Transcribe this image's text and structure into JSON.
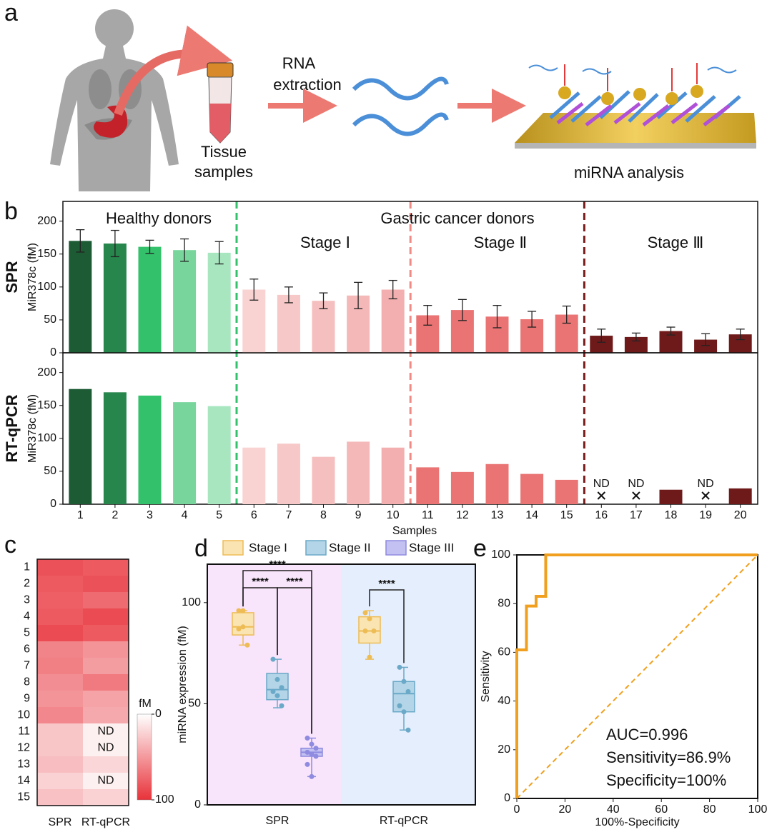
{
  "illustration": {
    "panel_label": "a",
    "tissue_label": [
      "Tissue",
      "samples"
    ],
    "extraction_label": [
      "RNA",
      "extraction"
    ],
    "analysis_label": "miRNA analysis"
  },
  "chart_data": [
    {
      "type": "bar",
      "panel_label": "b",
      "row_label": "SPR",
      "ylabel": "MiR378c (fM)",
      "values": [
        170,
        166,
        161,
        156,
        152,
        96,
        88,
        79,
        87,
        96,
        57,
        65,
        55,
        51,
        58,
        26,
        24,
        33,
        20,
        28
      ],
      "errors": [
        17,
        20,
        10,
        17,
        17,
        16,
        12,
        12,
        20,
        14,
        15,
        16,
        17,
        12,
        13,
        10,
        6,
        6,
        9,
        8
      ],
      "colors": [
        "#1d5b34",
        "#26864c",
        "#33c16b",
        "#78d69d",
        "#a8e6c0",
        "#f9d2d2",
        "#f7c8c8",
        "#f5bfbf",
        "#f4b8b8",
        "#f3afaf",
        "#ea7474",
        "#ea7474",
        "#ea7474",
        "#ea7474",
        "#ea7474",
        "#6f1a1a",
        "#6f1a1a",
        "#6f1a1a",
        "#6f1a1a",
        "#6f1a1a"
      ],
      "ylim": [
        0,
        230
      ],
      "yticks": [
        0,
        50,
        100,
        150,
        200
      ],
      "annotations": [
        "Healthy donors",
        "Gastric cancer donors",
        "Stage Ⅰ",
        "Stage Ⅱ",
        "Stage Ⅲ"
      ]
    },
    {
      "type": "bar",
      "row_label": "RT-qPCR",
      "ylabel": "MiR378c (fM)",
      "xlabel": "Samples",
      "categories": [
        "1",
        "2",
        "3",
        "4",
        "5",
        "6",
        "7",
        "8",
        "9",
        "10",
        "11",
        "12",
        "13",
        "14",
        "15",
        "16",
        "17",
        "18",
        "19",
        "20"
      ],
      "values": [
        175,
        170,
        165,
        155,
        149,
        86,
        92,
        72,
        95,
        86,
        56,
        49,
        61,
        46,
        37,
        null,
        null,
        22,
        null,
        24
      ],
      "value_labels": [
        null,
        null,
        null,
        null,
        null,
        null,
        null,
        null,
        null,
        null,
        null,
        null,
        null,
        null,
        null,
        "ND",
        "ND",
        null,
        "ND",
        null
      ],
      "colors": [
        "#1d5b34",
        "#26864c",
        "#33c16b",
        "#78d69d",
        "#a8e6c0",
        "#f9d2d2",
        "#f7c8c8",
        "#f5bfbf",
        "#f4b8b8",
        "#f3afaf",
        "#ea7474",
        "#ea7474",
        "#ea7474",
        "#ea7474",
        "#ea7474",
        "#6f1a1a",
        "#6f1a1a",
        "#6f1a1a",
        "#6f1a1a",
        "#6f1a1a"
      ],
      "ylim": [
        0,
        230
      ],
      "yticks": [
        0,
        50,
        100,
        150,
        200
      ]
    },
    {
      "type": "heatmap",
      "panel_label": "c",
      "rows": [
        "1",
        "2",
        "3",
        "4",
        "5",
        "6",
        "7",
        "8",
        "9",
        "10",
        "11",
        "12",
        "13",
        "14",
        "15"
      ],
      "columns": [
        "SPR",
        "RT-qPCR"
      ],
      "values": [
        [
          85,
          80
        ],
        [
          80,
          85
        ],
        [
          78,
          72
        ],
        [
          80,
          88
        ],
        [
          88,
          80
        ],
        [
          60,
          52
        ],
        [
          62,
          48
        ],
        [
          55,
          65
        ],
        [
          52,
          45
        ],
        [
          58,
          42
        ],
        [
          28,
          null
        ],
        [
          28,
          null
        ],
        [
          32,
          20
        ],
        [
          22,
          null
        ],
        [
          30,
          22
        ]
      ],
      "value_labels": [
        [
          null,
          null
        ],
        [
          null,
          null
        ],
        [
          null,
          null
        ],
        [
          null,
          null
        ],
        [
          null,
          null
        ],
        [
          null,
          null
        ],
        [
          null,
          null
        ],
        [
          null,
          null
        ],
        [
          null,
          null
        ],
        [
          null,
          null
        ],
        [
          null,
          "ND"
        ],
        [
          null,
          "ND"
        ],
        [
          null,
          null
        ],
        [
          null,
          "ND"
        ],
        [
          null,
          null
        ]
      ],
      "colormap": [
        "#ffffff",
        "#e8323a"
      ],
      "colorbar_label": "fM",
      "clim": [
        0,
        100
      ],
      "cticks": [
        0,
        100
      ]
    },
    {
      "type": "box",
      "panel_label": "d",
      "ylabel": "miRNA expression (fM)",
      "categories": [
        "SPR",
        "RT-qPCR"
      ],
      "background_colors": [
        "#f8e4fb",
        "#e4eefc"
      ],
      "ylim": [
        0,
        119
      ],
      "yticks": [
        0,
        50,
        100
      ],
      "series": [
        {
          "name": "Stage I",
          "color": "#eebc55",
          "fill": "#fae4b2",
          "boxes": [
            {
              "min": 79,
              "q1": 84,
              "median": 88,
              "q3": 95,
              "max": 96,
              "points": [
                96,
                88,
                79,
                87,
                96
              ]
            },
            {
              "min": 72,
              "q1": 80,
              "median": 86,
              "q3": 93,
              "max": 96,
              "points": [
                95,
                92,
                86,
                86,
                73
              ]
            }
          ]
        },
        {
          "name": "Stage II",
          "color": "#6aa9c8",
          "fill": "#b3d5e7",
          "boxes": [
            {
              "min": 48,
              "q1": 52,
              "median": 57,
              "q3": 65,
              "max": 72,
              "points": [
                72,
                62,
                58,
                56,
                54,
                49
              ]
            },
            {
              "min": 37,
              "q1": 46,
              "median": 55,
              "q3": 61,
              "max": 68,
              "points": [
                68,
                61,
                56,
                49,
                46,
                37
              ]
            }
          ]
        },
        {
          "name": "Stage III",
          "color": "#8f8be0",
          "fill": "#c3c0f2",
          "boxes": [
            {
              "min": 14,
              "q1": 24,
              "median": 26,
              "q3": 28,
              "max": 33,
              "points": [
                33,
                30,
                28,
                26,
                25,
                24,
                20,
                14
              ]
            },
            null
          ]
        }
      ],
      "annotations": [
        "****",
        "****",
        "****",
        "****"
      ]
    },
    {
      "type": "line",
      "panel_label": "e",
      "xlabel": "100%-Specificity",
      "ylabel": "Sensitivity",
      "xlim": [
        0,
        100
      ],
      "ylim": [
        0,
        100
      ],
      "xticks": [
        0,
        20,
        40,
        60,
        80,
        100
      ],
      "yticks": [
        0,
        20,
        40,
        60,
        80,
        100
      ],
      "series": [
        {
          "color": "#f0a01e",
          "x": [
            0,
            0,
            4,
            4,
            8,
            8,
            12,
            12,
            100
          ],
          "values": [
            0,
            61,
            61,
            79,
            79,
            83,
            83,
            100,
            100
          ]
        },
        {
          "color": "#f0a01e",
          "dashed": true,
          "x": [
            0,
            100
          ],
          "values": [
            0,
            100
          ]
        }
      ],
      "annotations": [
        "AUC=0.996",
        "Sensitivity=86.9%",
        "Specificity=100%"
      ]
    }
  ]
}
